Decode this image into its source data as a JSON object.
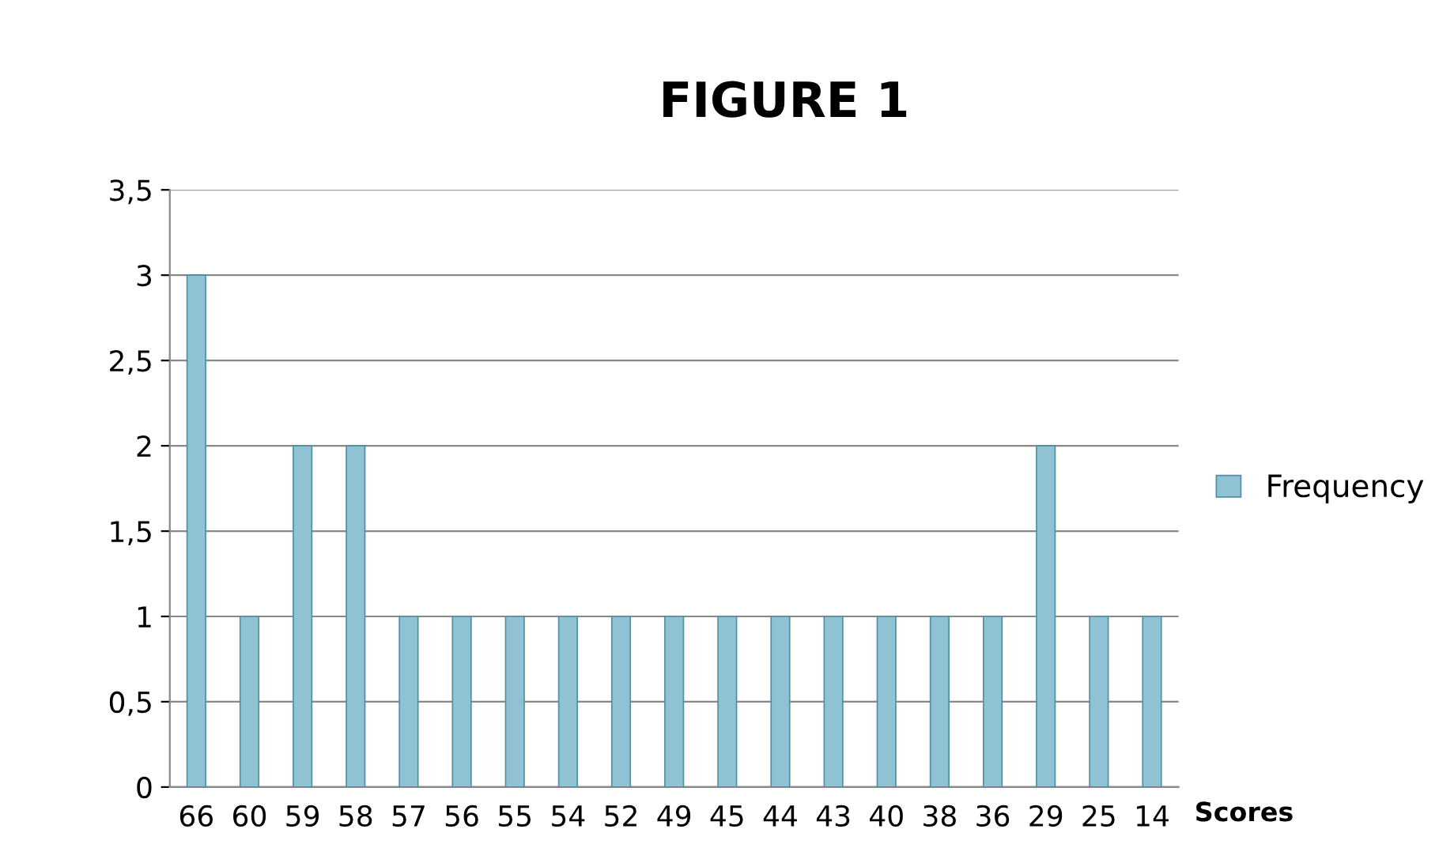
{
  "chart_data": {
    "type": "bar",
    "title": "FIGURE 1",
    "xlabel": "Scores",
    "categories": [
      "66",
      "60",
      "59",
      "58",
      "57",
      "56",
      "55",
      "54",
      "52",
      "49",
      "45",
      "44",
      "43",
      "40",
      "38",
      "36",
      "29",
      "25",
      "14"
    ],
    "series": [
      {
        "name": "Frequency",
        "color": "#8fc3d4",
        "values": [
          3,
          1,
          2,
          2,
          1,
          1,
          1,
          1,
          1,
          1,
          1,
          1,
          1,
          1,
          1,
          1,
          2,
          1,
          1
        ]
      }
    ],
    "ylim": [
      0,
      3.5
    ],
    "yticks": [
      0,
      {
        "value": 0.5,
        "label": "0,5"
      },
      1,
      {
        "value": 1.5,
        "label": "1,5"
      },
      2,
      {
        "value": 2.5,
        "label": "2,5"
      },
      3,
      {
        "value": 3.5,
        "label": "3,5"
      }
    ],
    "grid": "y",
    "legend": "right"
  }
}
